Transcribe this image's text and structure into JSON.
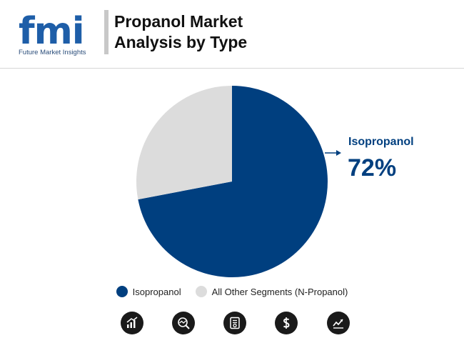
{
  "header": {
    "logo_text": "fmi",
    "logo_subtitle": "Future Market Insights",
    "title_line1": "Propanol Market",
    "title_line2": "Analysis by Type"
  },
  "colors": {
    "isopropanol": "#003f7f",
    "other": "#dcdcdc",
    "accent": "#1e5ea8"
  },
  "chart_data": {
    "type": "pie",
    "categories": [
      "Isopropanol",
      "All Other Segments (N-Propanol)"
    ],
    "values": [
      72,
      28
    ],
    "callout": {
      "label": "Isopropanol",
      "value": "72%"
    },
    "legend_position": "bottom"
  },
  "footer_icons": [
    "growth-chart-icon",
    "analysis-icon",
    "report-icon",
    "dollar-icon",
    "trend-chart-icon"
  ]
}
